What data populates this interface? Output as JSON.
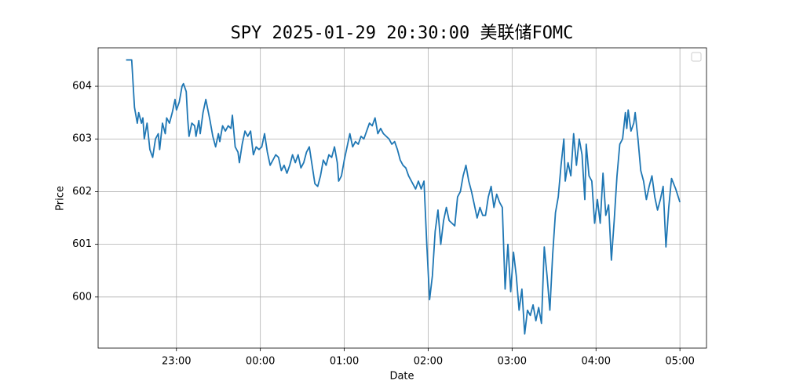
{
  "chart_data": {
    "type": "line",
    "title": "SPY 2025-01-29 20:30:00 美联储FOMC",
    "xlabel": "Date",
    "ylabel": "Price",
    "x": [
      "22:24",
      "22:28",
      "22:30",
      "22:32",
      "22:33",
      "22:35",
      "22:36",
      "22:37",
      "22:39",
      "22:41",
      "22:43",
      "22:45",
      "22:47",
      "22:48",
      "22:50",
      "22:52",
      "22:53",
      "22:55",
      "22:57",
      "22:59",
      "23:00",
      "23:02",
      "23:04",
      "23:05",
      "23:07",
      "23:08",
      "23:09",
      "23:11",
      "23:13",
      "23:14",
      "23:16",
      "23:17",
      "23:19",
      "23:21",
      "23:24",
      "23:26",
      "23:28",
      "23:30",
      "23:31",
      "23:33",
      "23:35",
      "23:37",
      "23:39",
      "23:40",
      "23:42",
      "23:44",
      "23:45",
      "23:47",
      "23:49",
      "23:51",
      "23:53",
      "23:55",
      "23:57",
      "23:59",
      "00:01",
      "00:03",
      "00:05",
      "00:07",
      "00:09",
      "00:11",
      "00:13",
      "00:15",
      "00:17",
      "00:19",
      "00:21",
      "00:23",
      "00:25",
      "00:27",
      "00:29",
      "00:31",
      "00:33",
      "00:35",
      "00:37",
      "00:39",
      "00:41",
      "00:43",
      "00:45",
      "00:47",
      "00:49",
      "00:51",
      "00:53",
      "00:55",
      "00:56",
      "00:58",
      "01:00",
      "01:02",
      "01:04",
      "01:06",
      "01:08",
      "01:10",
      "01:12",
      "01:14",
      "01:16",
      "01:18",
      "01:20",
      "01:22",
      "01:24",
      "01:26",
      "01:28",
      "01:30",
      "01:32",
      "01:34",
      "01:36",
      "01:38",
      "01:40",
      "01:42",
      "01:44",
      "01:46",
      "01:48",
      "01:50",
      "01:51",
      "01:53",
      "01:55",
      "01:57",
      "01:59",
      "02:01",
      "02:03",
      "02:05",
      "02:07",
      "02:09",
      "02:11",
      "02:13",
      "02:15",
      "02:17",
      "02:19",
      "02:21",
      "02:23",
      "02:25",
      "02:27",
      "02:29",
      "02:31",
      "02:33",
      "02:35",
      "02:37",
      "02:39",
      "02:41",
      "02:43",
      "02:45",
      "02:47",
      "02:49",
      "02:51",
      "02:53",
      "02:55",
      "02:57",
      "02:59",
      "03:01",
      "03:03",
      "03:05",
      "03:07",
      "03:09",
      "03:11",
      "03:13",
      "03:15",
      "03:17",
      "03:19",
      "03:21",
      "03:23",
      "03:25",
      "03:27",
      "03:29",
      "03:31",
      "03:33",
      "03:35",
      "03:37",
      "03:38",
      "03:40",
      "03:42",
      "03:44",
      "03:46",
      "03:48",
      "03:50",
      "03:52",
      "03:53",
      "03:55",
      "03:57",
      "03:59",
      "04:01",
      "04:03",
      "04:05",
      "04:07",
      "04:09",
      "04:11",
      "04:13",
      "04:15",
      "04:17",
      "04:19",
      "04:21",
      "04:22",
      "04:23",
      "04:25",
      "04:27",
      "04:28",
      "04:30",
      "04:32",
      "04:34",
      "04:36",
      "04:38",
      "04:40",
      "04:42",
      "04:44",
      "04:46",
      "04:48",
      "04:50",
      "04:52",
      "04:54",
      "04:57",
      "05:00"
    ],
    "series": [
      {
        "color": "#1f77b4",
        "values": [
          604.5,
          604.5,
          603.6,
          603.3,
          603.5,
          603.3,
          603.4,
          603.0,
          603.3,
          602.8,
          602.65,
          603.0,
          603.1,
          602.8,
          603.3,
          603.1,
          603.4,
          603.3,
          603.5,
          603.75,
          603.55,
          603.7,
          604.0,
          604.05,
          603.9,
          603.4,
          603.05,
          603.3,
          603.25,
          603.05,
          603.35,
          603.1,
          603.5,
          603.75,
          603.35,
          603.05,
          602.85,
          603.1,
          602.95,
          603.25,
          603.15,
          603.25,
          603.2,
          603.45,
          602.85,
          602.75,
          602.55,
          602.9,
          603.15,
          603.05,
          603.15,
          602.7,
          602.85,
          602.8,
          602.85,
          603.1,
          602.75,
          602.5,
          602.6,
          602.7,
          602.65,
          602.4,
          602.5,
          602.35,
          602.5,
          602.7,
          602.55,
          602.7,
          602.45,
          602.55,
          602.75,
          602.85,
          602.5,
          602.15,
          602.1,
          602.3,
          602.6,
          602.5,
          602.7,
          602.65,
          602.85,
          602.55,
          602.2,
          602.3,
          602.6,
          602.85,
          603.1,
          602.85,
          602.95,
          602.9,
          603.05,
          603.0,
          603.15,
          603.3,
          603.25,
          603.4,
          603.1,
          603.2,
          603.1,
          603.05,
          603.0,
          602.9,
          602.95,
          602.8,
          602.6,
          602.5,
          602.45,
          602.3,
          602.2,
          602.1,
          602.05,
          602.2,
          602.05,
          602.2,
          601.0,
          599.95,
          600.4,
          601.25,
          601.65,
          601.0,
          601.45,
          601.7,
          601.45,
          601.4,
          601.35,
          601.9,
          602.0,
          602.3,
          602.5,
          602.2,
          602.0,
          601.75,
          601.5,
          601.7,
          601.55,
          601.55,
          601.9,
          602.1,
          601.7,
          601.95,
          601.8,
          601.7,
          600.15,
          601.0,
          600.1,
          600.85,
          600.4,
          599.75,
          600.15,
          599.3,
          599.75,
          599.65,
          599.85,
          599.55,
          599.8,
          599.5,
          600.95,
          600.4,
          599.75,
          600.8,
          601.6,
          601.9,
          602.5,
          603.0,
          602.2,
          602.55,
          602.3,
          603.1,
          602.5,
          603.0,
          602.7,
          601.85,
          602.9,
          602.3,
          602.2,
          601.4,
          601.85,
          601.4,
          602.35,
          601.55,
          601.75,
          600.7,
          601.45,
          602.3,
          602.9,
          603.0,
          603.5,
          603.2,
          603.55,
          603.15,
          603.3,
          603.5,
          603.0,
          602.4,
          602.2,
          601.85,
          602.1,
          602.3,
          601.9,
          601.65,
          601.85,
          602.1,
          600.95,
          601.7,
          602.25,
          602.05,
          601.8
        ]
      }
    ],
    "xlim": [
      "22:04",
      "05:19"
    ],
    "xticks": [
      "23:00",
      "00:00",
      "01:00",
      "02:00",
      "03:00",
      "04:00",
      "05:00"
    ],
    "ylim": [
      599.03,
      604.73
    ],
    "yticks": [
      600,
      601,
      602,
      603,
      604
    ],
    "grid": true
  }
}
